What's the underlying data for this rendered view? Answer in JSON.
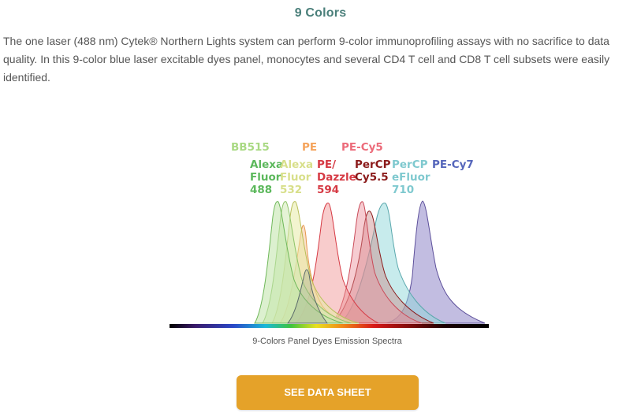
{
  "heading": "9 Colors",
  "paragraph": "The one laser (488 nm) Cytek® Northern Lights system can perform 9-color immunoprofiling assays with no sacrifice to data quality. In this 9-color blue laser excitable dyes panel, monocytes and several CD4 T cell and CD8 T cell subsets were easily identified.",
  "figure": {
    "caption": "9-Colors Panel Dyes Emission Spectra",
    "dyes": [
      {
        "id": "bb515",
        "lines": [
          "BB515"
        ],
        "color": "#a9d983"
      },
      {
        "id": "pe",
        "lines": [
          "PE"
        ],
        "color": "#f5a35a"
      },
      {
        "id": "pe-cy5",
        "lines": [
          "PE-Cy5"
        ],
        "color": "#ec6b7a"
      },
      {
        "id": "af488",
        "lines": [
          "Alexa",
          "Fluor",
          "488"
        ],
        "color": "#5cb85c"
      },
      {
        "id": "af532",
        "lines": [
          "Alexa",
          "Fluor",
          "532"
        ],
        "color": "#d8df8a"
      },
      {
        "id": "pe-dazzle",
        "lines": [
          "PE/",
          "Dazzle",
          "594"
        ],
        "color": "#d63a44"
      },
      {
        "id": "percp-cy55",
        "lines": [
          "PerCP",
          "Cy5.5"
        ],
        "color": "#8b1a1a"
      },
      {
        "id": "percp-ef710",
        "lines": [
          "PerCP",
          "eFluor",
          "710"
        ],
        "color": "#7fc9cf"
      },
      {
        "id": "pe-cy7",
        "lines": [
          "PE-Cy7"
        ],
        "color": "#5566bb"
      }
    ]
  },
  "button": {
    "label": "SEE DATA SHEET",
    "color": "#e5a229"
  }
}
